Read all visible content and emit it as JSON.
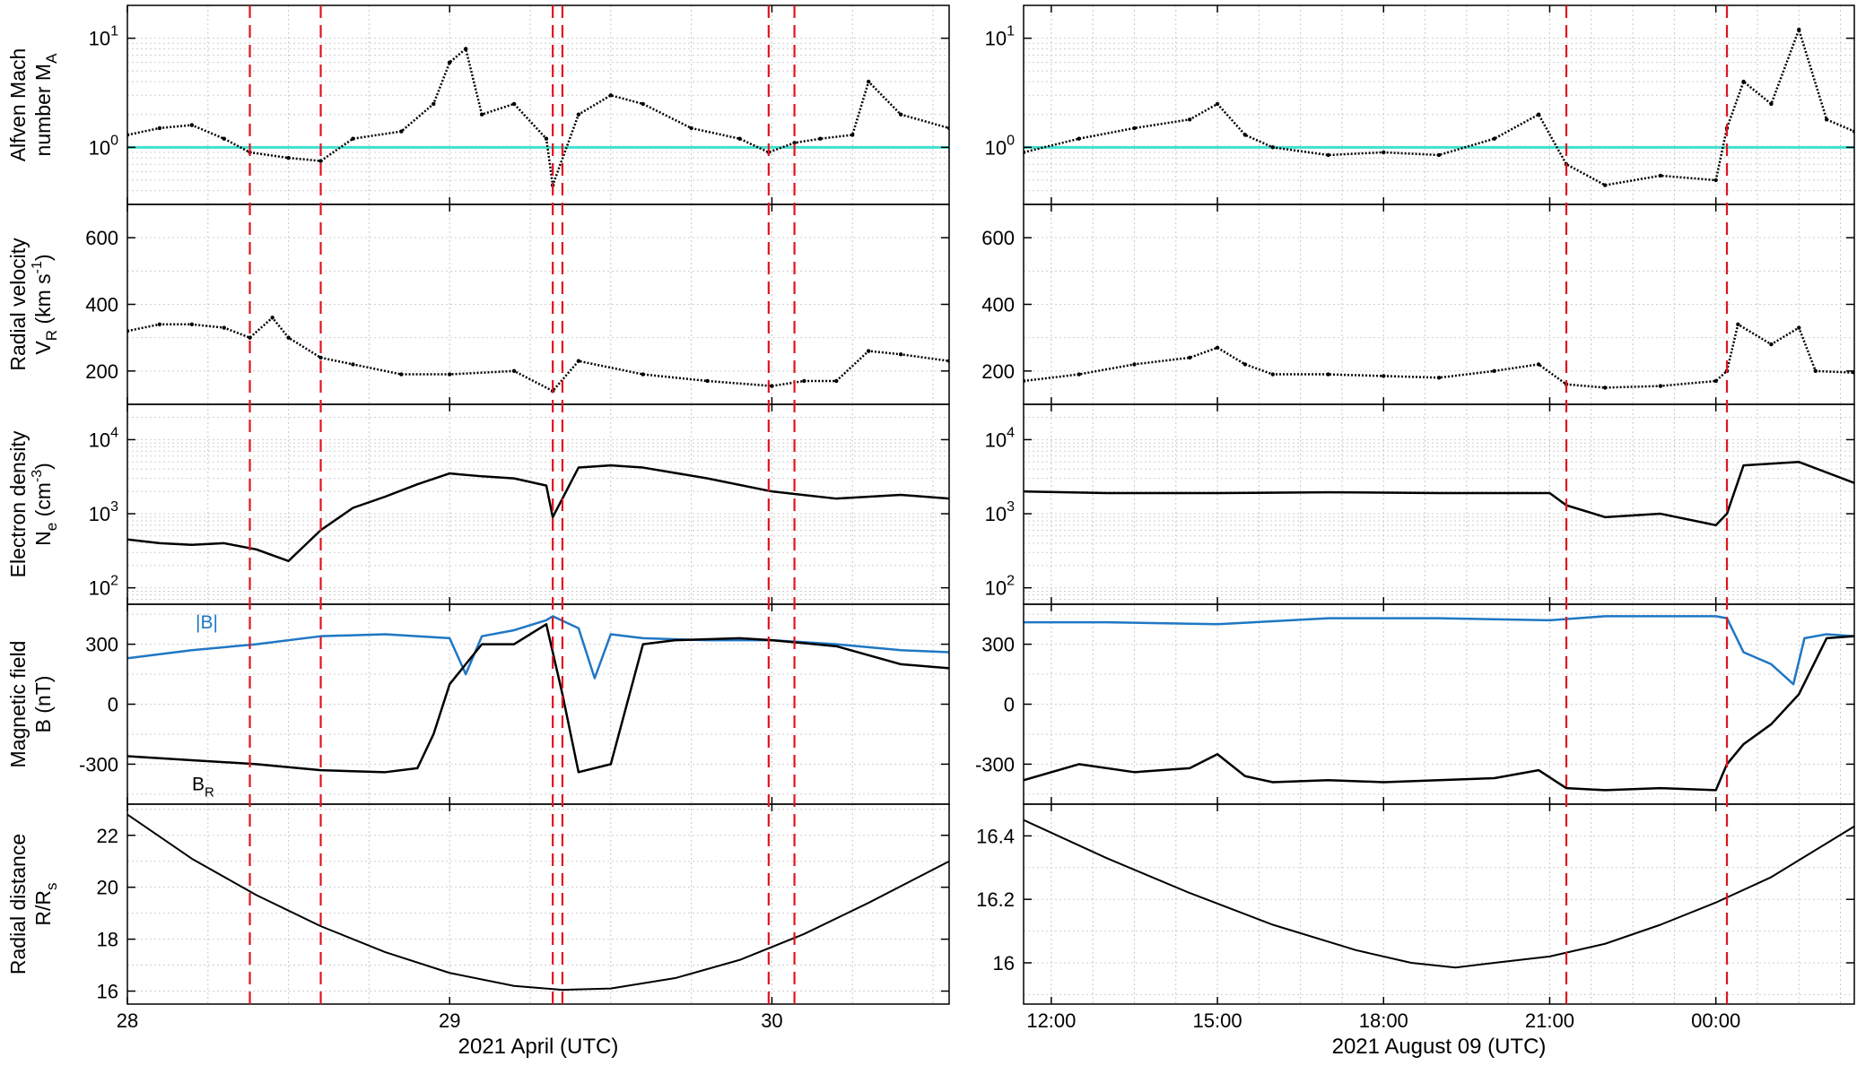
{
  "chart_data": [
    {
      "type": "line",
      "panel": "april",
      "xlabel": "2021 April (UTC)",
      "x_ticks": [
        "28",
        "29",
        "30"
      ],
      "x_tick_values": [
        28.0,
        29.0,
        30.0
      ],
      "xlim": [
        28.0,
        30.55
      ],
      "event_lines": [
        28.38,
        28.6,
        29.32,
        29.35,
        29.99,
        30.07
      ],
      "event_line_color": "#e0141e",
      "panels": [
        {
          "id": "mach",
          "ylabel_lines": [
            "Alfven Mach",
            "number M",
            "A"
          ],
          "scale": "log",
          "ylim": [
            0.3,
            20
          ],
          "ticks": [
            {
              "base": "10",
              "exp": "0",
              "value": 1
            },
            {
              "base": "10",
              "exp": "1",
              "value": 10
            }
          ],
          "reference_line": {
            "value": 1,
            "color": "#40e0d0"
          },
          "series": [
            {
              "style": "points",
              "color": "#000000",
              "x": [
                28.0,
                28.1,
                28.2,
                28.3,
                28.38,
                28.5,
                28.6,
                28.7,
                28.85,
                28.95,
                29.0,
                29.05,
                29.1,
                29.2,
                29.3,
                29.32,
                29.4,
                29.5,
                29.6,
                29.75,
                29.9,
                29.99,
                30.07,
                30.15,
                30.25,
                30.3,
                30.4,
                30.55
              ],
              "y": [
                1.3,
                1.5,
                1.6,
                1.2,
                0.9,
                0.8,
                0.75,
                1.2,
                1.4,
                2.5,
                6.0,
                8.0,
                2.0,
                2.5,
                1.2,
                0.45,
                2.0,
                3.0,
                2.5,
                1.5,
                1.2,
                0.9,
                1.1,
                1.2,
                1.3,
                4.0,
                2.0,
                1.5
              ]
            }
          ]
        },
        {
          "id": "velocity",
          "ylabel_lines": [
            "Radial velocity",
            "V",
            "R",
            " (km s",
            "-1",
            ")"
          ],
          "scale": "linear",
          "ylim": [
            100,
            700
          ],
          "ticks": [
            {
              "label": "200",
              "value": 200
            },
            {
              "label": "400",
              "value": 400
            },
            {
              "label": "600",
              "value": 600
            }
          ],
          "series": [
            {
              "style": "points",
              "color": "#000000",
              "x": [
                28.0,
                28.1,
                28.2,
                28.3,
                28.38,
                28.45,
                28.5,
                28.6,
                28.7,
                28.85,
                29.0,
                29.2,
                29.32,
                29.4,
                29.6,
                29.8,
                30.0,
                30.1,
                30.2,
                30.3,
                30.4,
                30.55
              ],
              "y": [
                320,
                340,
                340,
                330,
                300,
                360,
                300,
                240,
                220,
                190,
                190,
                200,
                140,
                230,
                190,
                170,
                155,
                170,
                170,
                260,
                250,
                230
              ]
            }
          ]
        },
        {
          "id": "density",
          "ylabel_lines": [
            "Electron density",
            "N",
            "e",
            " (cm",
            "-3",
            ")"
          ],
          "scale": "log",
          "ylim": [
            60,
            30000
          ],
          "ticks": [
            {
              "base": "10",
              "exp": "2",
              "value": 100
            },
            {
              "base": "10",
              "exp": "3",
              "value": 1000
            },
            {
              "base": "10",
              "exp": "4",
              "value": 10000
            }
          ],
          "series": [
            {
              "style": "line",
              "color": "#000000",
              "x": [
                28.0,
                28.1,
                28.2,
                28.3,
                28.4,
                28.5,
                28.6,
                28.7,
                28.8,
                28.9,
                29.0,
                29.1,
                29.2,
                29.3,
                29.32,
                29.4,
                29.5,
                29.6,
                29.8,
                30.0,
                30.2,
                30.4,
                30.55
              ],
              "y": [
                450,
                400,
                380,
                400,
                330,
                230,
                600,
                1200,
                1700,
                2500,
                3500,
                3200,
                3000,
                2400,
                900,
                4200,
                4500,
                4200,
                3000,
                2000,
                1600,
                1800,
                1600
              ]
            }
          ]
        },
        {
          "id": "bfield",
          "ylabel_lines": [
            "Magnetic field",
            "B (nT)"
          ],
          "scale": "linear",
          "ylim": [
            -500,
            500
          ],
          "ticks": [
            {
              "label": "-300",
              "value": -300
            },
            {
              "label": "0",
              "value": 0
            },
            {
              "label": "300",
              "value": 300
            }
          ],
          "series": [
            {
              "name": "|B|",
              "style": "line",
              "color": "#1f77c4",
              "x": [
                28.0,
                28.2,
                28.4,
                28.6,
                28.8,
                29.0,
                29.05,
                29.1,
                29.2,
                29.3,
                29.32,
                29.4,
                29.45,
                29.5,
                29.6,
                29.8,
                30.0,
                30.2,
                30.4,
                30.55
              ],
              "y": [
                230,
                270,
                300,
                340,
                350,
                330,
                150,
                340,
                370,
                420,
                440,
                380,
                130,
                350,
                330,
                320,
                320,
                300,
                270,
                260
              ]
            },
            {
              "name": "B",
              "sub": "R",
              "style": "line",
              "color": "#000000",
              "x": [
                28.0,
                28.2,
                28.4,
                28.6,
                28.8,
                28.9,
                28.95,
                29.0,
                29.05,
                29.1,
                29.2,
                29.3,
                29.35,
                29.4,
                29.5,
                29.6,
                29.7,
                29.9,
                30.0,
                30.2,
                30.4,
                30.55
              ],
              "y": [
                -260,
                -280,
                -300,
                -330,
                -340,
                -320,
                -150,
                100,
                200,
                300,
                300,
                400,
                50,
                -340,
                -300,
                300,
                320,
                330,
                320,
                290,
                200,
                180
              ]
            }
          ]
        },
        {
          "id": "distance",
          "ylabel_lines": [
            "Radial distance",
            "R/R",
            "s"
          ],
          "scale": "linear",
          "ylim": [
            15.5,
            23.2
          ],
          "ticks": [
            {
              "label": "16",
              "value": 16
            },
            {
              "label": "18",
              "value": 18
            },
            {
              "label": "20",
              "value": 20
            },
            {
              "label": "22",
              "value": 22
            }
          ],
          "series": [
            {
              "style": "line",
              "color": "#000000",
              "x": [
                28.0,
                28.2,
                28.4,
                28.6,
                28.8,
                29.0,
                29.2,
                29.35,
                29.5,
                29.7,
                29.9,
                30.1,
                30.3,
                30.55
              ],
              "y": [
                22.8,
                21.1,
                19.7,
                18.5,
                17.5,
                16.7,
                16.2,
                16.05,
                16.1,
                16.5,
                17.2,
                18.2,
                19.4,
                21.0
              ]
            }
          ]
        }
      ]
    },
    {
      "type": "line",
      "panel": "august",
      "xlabel": "2021 August 09 (UTC)",
      "x_ticks": [
        "12:00",
        "15:00",
        "18:00",
        "21:00",
        "00:00"
      ],
      "x_tick_values": [
        12,
        15,
        18,
        21,
        24
      ],
      "xlim": [
        11.5,
        26.5
      ],
      "event_lines": [
        21.3,
        24.2
      ],
      "event_line_color": "#e0141e",
      "panels": [
        {
          "id": "mach",
          "scale": "log",
          "ylim": [
            0.3,
            20
          ],
          "ticks": [
            {
              "base": "10",
              "exp": "0",
              "value": 1
            },
            {
              "base": "10",
              "exp": "1",
              "value": 10
            }
          ],
          "reference_line": {
            "value": 1,
            "color": "#40e0d0"
          },
          "series": [
            {
              "style": "points",
              "color": "#000000",
              "x": [
                11.5,
                12.5,
                13.5,
                14.5,
                15.0,
                15.5,
                16.0,
                17.0,
                18.0,
                19.0,
                20.0,
                20.8,
                21.3,
                22.0,
                23.0,
                24.0,
                24.2,
                24.5,
                25.0,
                25.5,
                26.0,
                26.5
              ],
              "y": [
                0.9,
                1.2,
                1.5,
                1.8,
                2.5,
                1.3,
                1.0,
                0.85,
                0.9,
                0.85,
                1.2,
                2.0,
                0.7,
                0.45,
                0.55,
                0.5,
                1.5,
                4.0,
                2.5,
                12.0,
                1.8,
                1.4
              ]
            }
          ]
        },
        {
          "id": "velocity",
          "scale": "linear",
          "ylim": [
            100,
            700
          ],
          "ticks": [
            {
              "label": "200",
              "value": 200
            },
            {
              "label": "400",
              "value": 400
            },
            {
              "label": "600",
              "value": 600
            }
          ],
          "series": [
            {
              "style": "points",
              "color": "#000000",
              "x": [
                11.5,
                12.5,
                13.5,
                14.5,
                15.0,
                15.5,
                16.0,
                17.0,
                18.0,
                19.0,
                20.0,
                20.8,
                21.3,
                22.0,
                23.0,
                24.0,
                24.2,
                24.4,
                25.0,
                25.5,
                25.8,
                26.5
              ],
              "y": [
                170,
                190,
                220,
                240,
                270,
                220,
                190,
                190,
                185,
                180,
                200,
                220,
                160,
                150,
                155,
                170,
                200,
                340,
                280,
                330,
                200,
                195
              ]
            }
          ]
        },
        {
          "id": "density",
          "scale": "log",
          "ylim": [
            60,
            30000
          ],
          "ticks": [
            {
              "base": "10",
              "exp": "2",
              "value": 100
            },
            {
              "base": "10",
              "exp": "3",
              "value": 1000
            },
            {
              "base": "10",
              "exp": "4",
              "value": 10000
            }
          ],
          "series": [
            {
              "style": "line",
              "color": "#000000",
              "x": [
                11.5,
                13.0,
                15.0,
                17.0,
                19.0,
                21.0,
                21.3,
                22.0,
                23.0,
                24.0,
                24.2,
                24.5,
                25.5,
                26.5
              ],
              "y": [
                2000,
                1900,
                1900,
                1950,
                1900,
                1900,
                1300,
                900,
                1000,
                700,
                1000,
                4500,
                5000,
                2600
              ]
            }
          ]
        },
        {
          "id": "bfield",
          "scale": "linear",
          "ylim": [
            -500,
            500
          ],
          "ticks": [
            {
              "label": "-300",
              "value": -300
            },
            {
              "label": "0",
              "value": 0
            },
            {
              "label": "300",
              "value": 300
            }
          ],
          "series": [
            {
              "style": "line",
              "color": "#1f77c4",
              "x": [
                11.5,
                13.0,
                15.0,
                17.0,
                19.0,
                21.0,
                22.0,
                23.0,
                24.0,
                24.2,
                24.5,
                25.0,
                25.4,
                25.6,
                26.0,
                26.5
              ],
              "y": [
                410,
                410,
                400,
                430,
                430,
                420,
                440,
                440,
                440,
                430,
                260,
                200,
                100,
                330,
                350,
                340
              ]
            },
            {
              "style": "line",
              "color": "#000000",
              "x": [
                11.5,
                12.5,
                13.5,
                14.5,
                15.0,
                15.5,
                16.0,
                17.0,
                18.0,
                19.0,
                20.0,
                20.8,
                21.3,
                22.0,
                23.0,
                24.0,
                24.2,
                24.5,
                25.0,
                25.5,
                26.0,
                26.5
              ],
              "y": [
                -380,
                -300,
                -340,
                -320,
                -250,
                -360,
                -390,
                -380,
                -390,
                -380,
                -370,
                -330,
                -420,
                -430,
                -420,
                -430,
                -300,
                -200,
                -100,
                50,
                330,
                340
              ]
            }
          ]
        },
        {
          "id": "distance",
          "scale": "linear",
          "ylim": [
            15.87,
            16.5
          ],
          "ticks": [
            {
              "label": "16",
              "value": 16
            },
            {
              "label": "16.2",
              "value": 16.2
            },
            {
              "label": "16.4",
              "value": 16.4
            }
          ],
          "series": [
            {
              "style": "line",
              "color": "#000000",
              "x": [
                11.5,
                13.0,
                14.5,
                16.0,
                17.5,
                18.5,
                19.3,
                20.0,
                21.0,
                22.0,
                23.0,
                24.0,
                25.0,
                26.5
              ],
              "y": [
                16.45,
                16.33,
                16.22,
                16.12,
                16.04,
                16.0,
                15.985,
                16.0,
                16.02,
                16.06,
                16.12,
                16.19,
                16.27,
                16.43
              ]
            }
          ]
        }
      ]
    }
  ]
}
